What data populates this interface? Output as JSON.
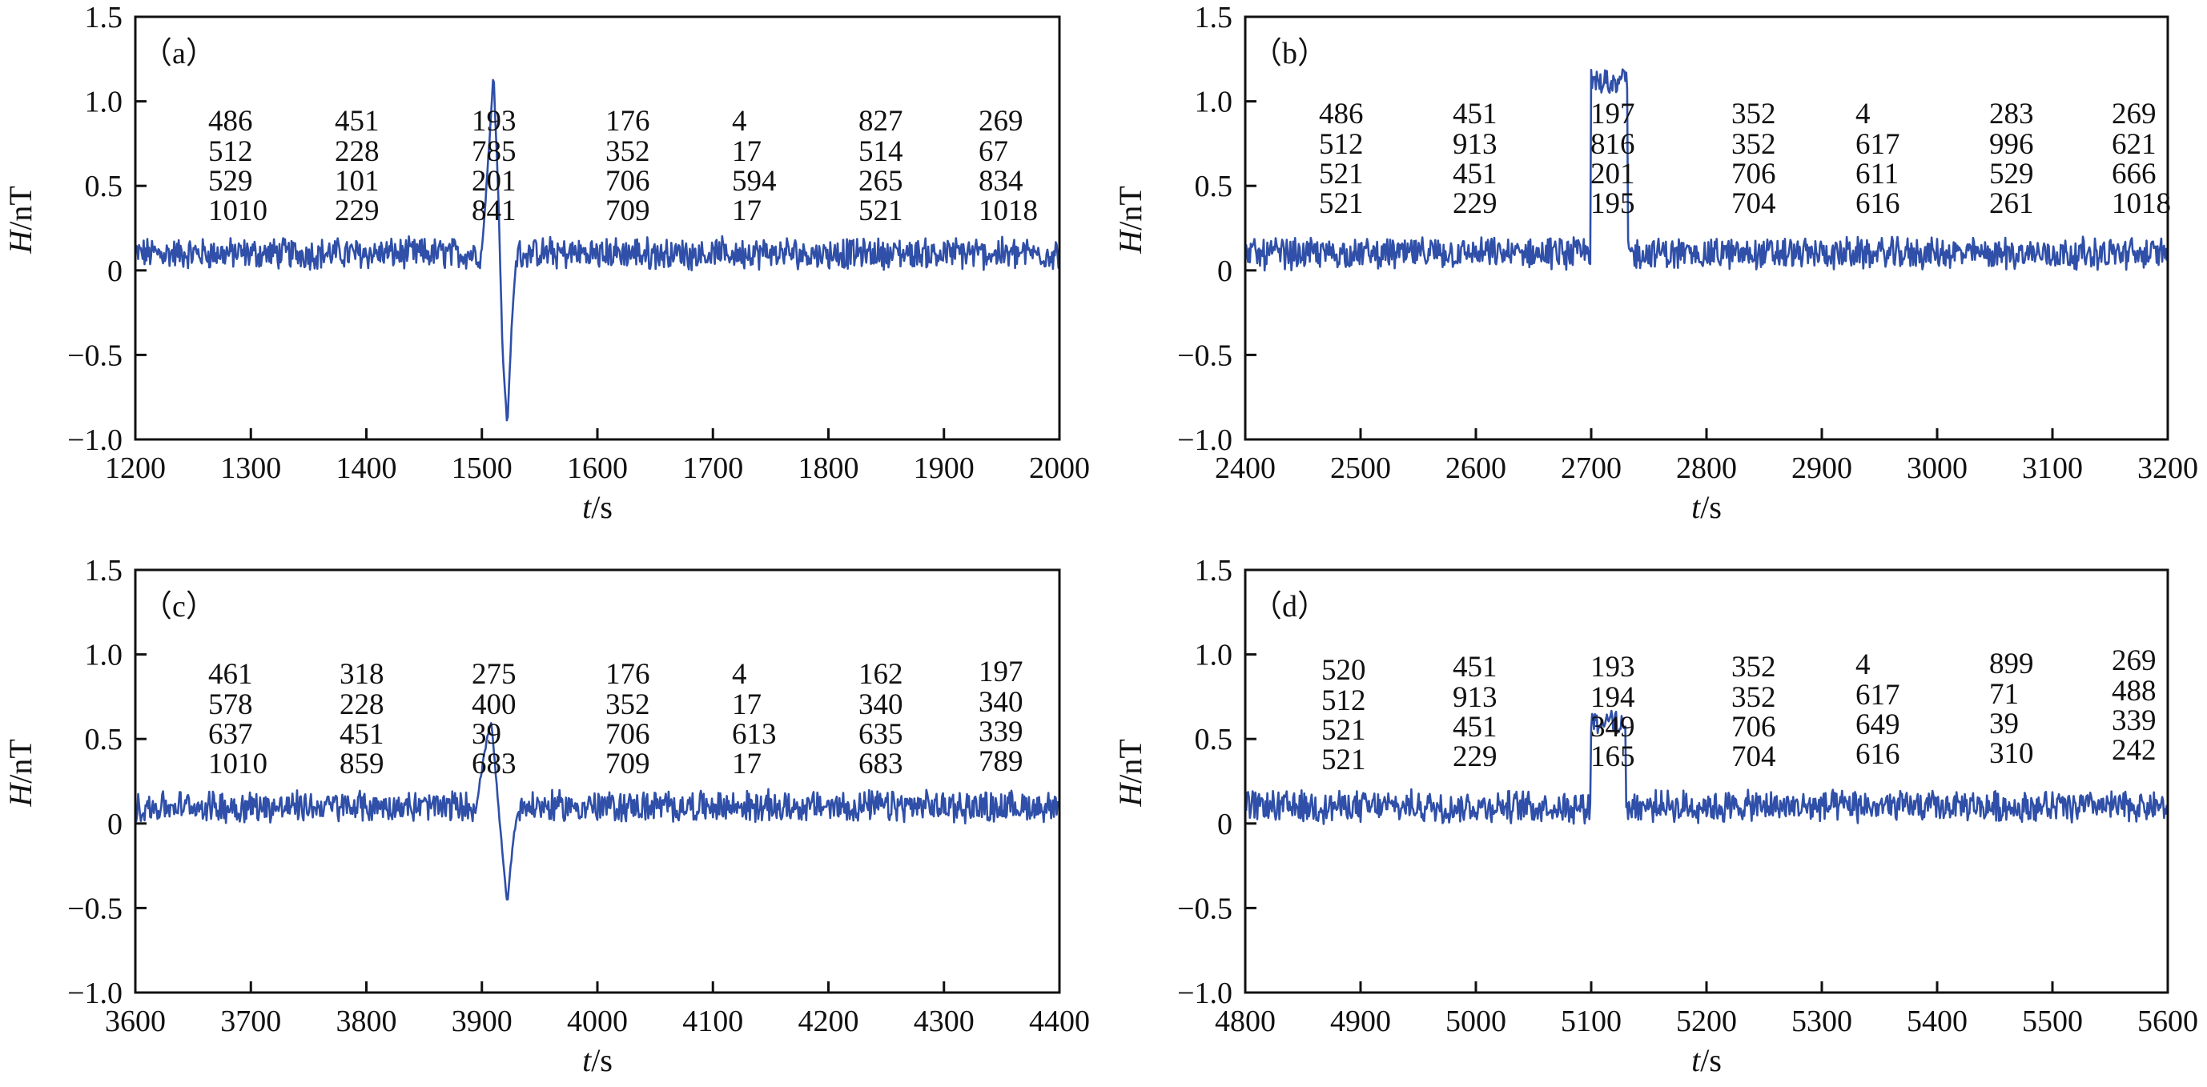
{
  "chart_data": [
    {
      "type": "line",
      "panel_label": "（a）",
      "xlabel_italic": "t",
      "xlabel_unit": "/s",
      "ylabel_italic": "H",
      "ylabel_unit": "/nT",
      "xlim": [
        1200,
        2000
      ],
      "ylim": [
        -1.0,
        1.5
      ],
      "xticks": [
        "1200",
        "1300",
        "1400",
        "1500",
        "1600",
        "1700",
        "1800",
        "1900",
        "2000"
      ],
      "yticks": [
        "−1.0",
        "−0.5",
        "0",
        "0.5",
        "1.0",
        "1.5"
      ],
      "series_color": "#2f4fa8",
      "baseline": 0.1,
      "noise_amplitude": 0.08,
      "anomaly_points": [
        [
          1500,
          0.1
        ],
        [
          1505,
          0.6
        ],
        [
          1510,
          1.17
        ],
        [
          1514,
          0.5
        ],
        [
          1518,
          -0.5
        ],
        [
          1522,
          -0.92
        ],
        [
          1526,
          -0.3
        ],
        [
          1530,
          0.1
        ]
      ],
      "annotation_columns": [
        [
          "486",
          "512",
          "529",
          "1010"
        ],
        [
          "451",
          "228",
          "101",
          "229"
        ],
        [
          "193",
          "785",
          "201",
          "841"
        ],
        [
          "176",
          "352",
          "706",
          "709"
        ],
        [
          "4",
          "17",
          "594",
          "17"
        ],
        [
          "827",
          "514",
          "265",
          "521"
        ],
        [
          "269",
          "67",
          "834",
          "1018"
        ]
      ]
    },
    {
      "type": "line",
      "panel_label": "（b）",
      "xlabel_italic": "t",
      "xlabel_unit": "/s",
      "ylabel_italic": "H",
      "ylabel_unit": "/nT",
      "xlim": [
        2400,
        3200
      ],
      "ylim": [
        -1.0,
        1.5
      ],
      "xticks": [
        "2400",
        "2500",
        "2600",
        "2700",
        "2800",
        "2900",
        "3000",
        "3100",
        "3200"
      ],
      "yticks": [
        "−1.0",
        "−0.5",
        "0",
        "0.5",
        "1.0",
        "1.5"
      ],
      "series_color": "#2f4fa8",
      "baseline": 0.1,
      "noise_amplitude": 0.08,
      "plateau": {
        "start": 2700,
        "end": 2732,
        "level": 1.12
      },
      "annotation_columns": [
        [
          "486",
          "512",
          "521",
          "521"
        ],
        [
          "451",
          "913",
          "451",
          "229"
        ],
        [
          "197",
          "816",
          "201",
          "195"
        ],
        [
          "352",
          "352",
          "706",
          "704"
        ],
        [
          "4",
          "617",
          "611",
          "616"
        ],
        [
          "283",
          "996",
          "529",
          "261"
        ],
        [
          "269",
          "621",
          "666",
          "1018"
        ]
      ]
    },
    {
      "type": "line",
      "panel_label": "（c）",
      "xlabel_italic": "t",
      "xlabel_unit": "/s",
      "ylabel_italic": "H",
      "ylabel_unit": "/nT",
      "xlim": [
        3600,
        4400
      ],
      "ylim": [
        -1.0,
        1.5
      ],
      "xticks": [
        "3600",
        "3700",
        "3800",
        "3900",
        "4000",
        "4100",
        "4200",
        "4300",
        "4400"
      ],
      "yticks": [
        "−1.0",
        "−0.5",
        "0",
        "0.5",
        "1.0",
        "1.5"
      ],
      "series_color": "#2f4fa8",
      "baseline": 0.1,
      "noise_amplitude": 0.08,
      "anomaly_points": [
        [
          3895,
          0.1
        ],
        [
          3903,
          0.45
        ],
        [
          3908,
          0.6
        ],
        [
          3912,
          0.3
        ],
        [
          3918,
          -0.2
        ],
        [
          3922,
          -0.47
        ],
        [
          3927,
          -0.1
        ],
        [
          3932,
          0.1
        ]
      ],
      "annotation_columns": [
        [
          "461",
          "578",
          "637",
          "1010"
        ],
        [
          "318",
          "228",
          "451",
          "859"
        ],
        [
          "275",
          "400",
          "39",
          "683"
        ],
        [
          "176",
          "352",
          "706",
          "709"
        ],
        [
          "4",
          "17",
          "613",
          "17"
        ],
        [
          "162",
          "340",
          "635",
          "683"
        ],
        [
          "197",
          "340",
          "339",
          "789"
        ]
      ]
    },
    {
      "type": "line",
      "panel_label": "（d）",
      "xlabel_italic": "t",
      "xlabel_unit": "/s",
      "ylabel_italic": "H",
      "ylabel_unit": "/nT",
      "xlim": [
        4800,
        5600
      ],
      "ylim": [
        -1.0,
        1.5
      ],
      "xticks": [
        "4800",
        "4900",
        "5000",
        "5100",
        "5200",
        "5300",
        "5400",
        "5500",
        "5600"
      ],
      "yticks": [
        "−1.0",
        "−0.5",
        "0",
        "0.5",
        "1.0",
        "1.5"
      ],
      "series_color": "#2f4fa8",
      "baseline": 0.1,
      "noise_amplitude": 0.08,
      "plateau": {
        "start": 5100,
        "end": 5130,
        "level": 0.6
      },
      "annotation_columns": [
        [
          "520",
          "512",
          "521",
          "521"
        ],
        [
          "451",
          "913",
          "451",
          "229"
        ],
        [
          "193",
          "194",
          "349",
          "165"
        ],
        [
          "352",
          "352",
          "706",
          "704"
        ],
        [
          "4",
          "617",
          "649",
          "616"
        ],
        [
          "899",
          "71",
          "39",
          "310"
        ],
        [
          "269",
          "488",
          "339",
          "242"
        ]
      ]
    }
  ]
}
